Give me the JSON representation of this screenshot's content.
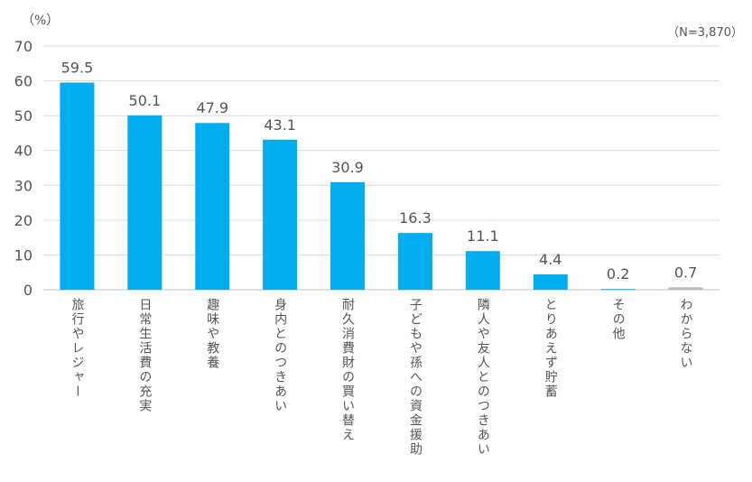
{
  "chart_data": {
    "type": "bar",
    "ylabel": "（%）",
    "note": "（N=3,870）",
    "ylim": [
      0,
      70
    ],
    "yticks": [
      0,
      10,
      20,
      30,
      40,
      50,
      60,
      70
    ],
    "grid": true,
    "categories": [
      "旅行やレジャー",
      "日常生活費の充実",
      "趣味や教養",
      "身内とのつきあい",
      "耐久消費財の買い替え",
      "子どもや孫への資金援助",
      "隣人や友人とのつきあい",
      "とりあえず貯蓄",
      "その他",
      "わからない"
    ],
    "values": [
      59.5,
      50.1,
      47.9,
      43.1,
      30.9,
      16.3,
      11.1,
      4.4,
      0.2,
      0.7
    ],
    "labels": [
      "59.5",
      "50.1",
      "47.9",
      "43.1",
      "30.9",
      "16.3",
      "11.1",
      "4.4",
      "0.2",
      "0.7"
    ],
    "colors": {
      "bar": "#00aeef",
      "last_bar": "#bbbbbb",
      "grid": "#d9d9d9",
      "text": "#555555"
    }
  }
}
